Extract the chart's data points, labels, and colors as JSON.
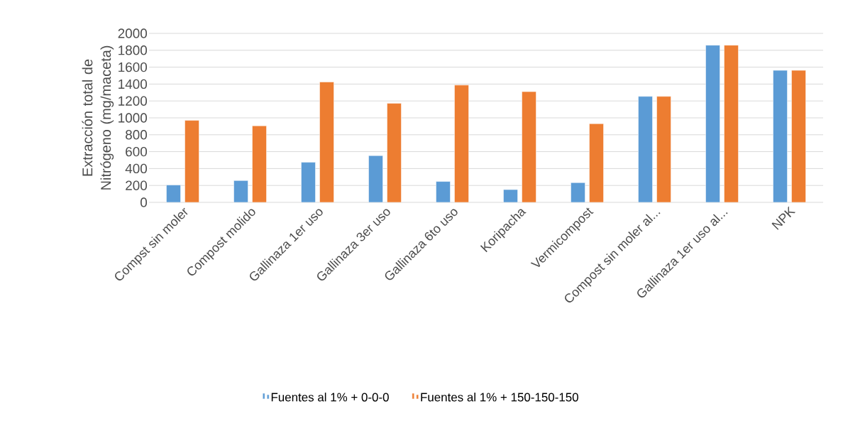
{
  "chart_data": {
    "type": "bar",
    "ylabel": "Extracción total de Nitrógeno (mg/maceta)",
    "categories": [
      "Compst sin moler",
      "Compost molido",
      "Gallinaza 1er uso",
      "Gallinaza 3er uso",
      "Gallinaza 6to uso",
      "Koripacha",
      "Vermicompost",
      "Compost sin moler al...",
      "Gallinaza 1er uso al...",
      "NPK"
    ],
    "series": [
      {
        "name": "Fuentes al 1% + 0-0-0",
        "color": "#5b9bd5",
        "values": [
          205,
          258,
          474,
          553,
          247,
          151,
          233,
          1254,
          1860,
          1562
        ]
      },
      {
        "name": "Fuentes al 1% + 150-150-150",
        "color": "#ed7d31",
        "values": [
          970,
          906,
          1425,
          1172,
          1388,
          1310,
          931,
          1254,
          1860,
          1562
        ]
      }
    ],
    "ylim": [
      0,
      2000
    ],
    "yticks": [
      0,
      200,
      400,
      600,
      800,
      1000,
      1200,
      1400,
      1600,
      1800,
      2000
    ],
    "grid": "y",
    "legend": "bottom"
  }
}
